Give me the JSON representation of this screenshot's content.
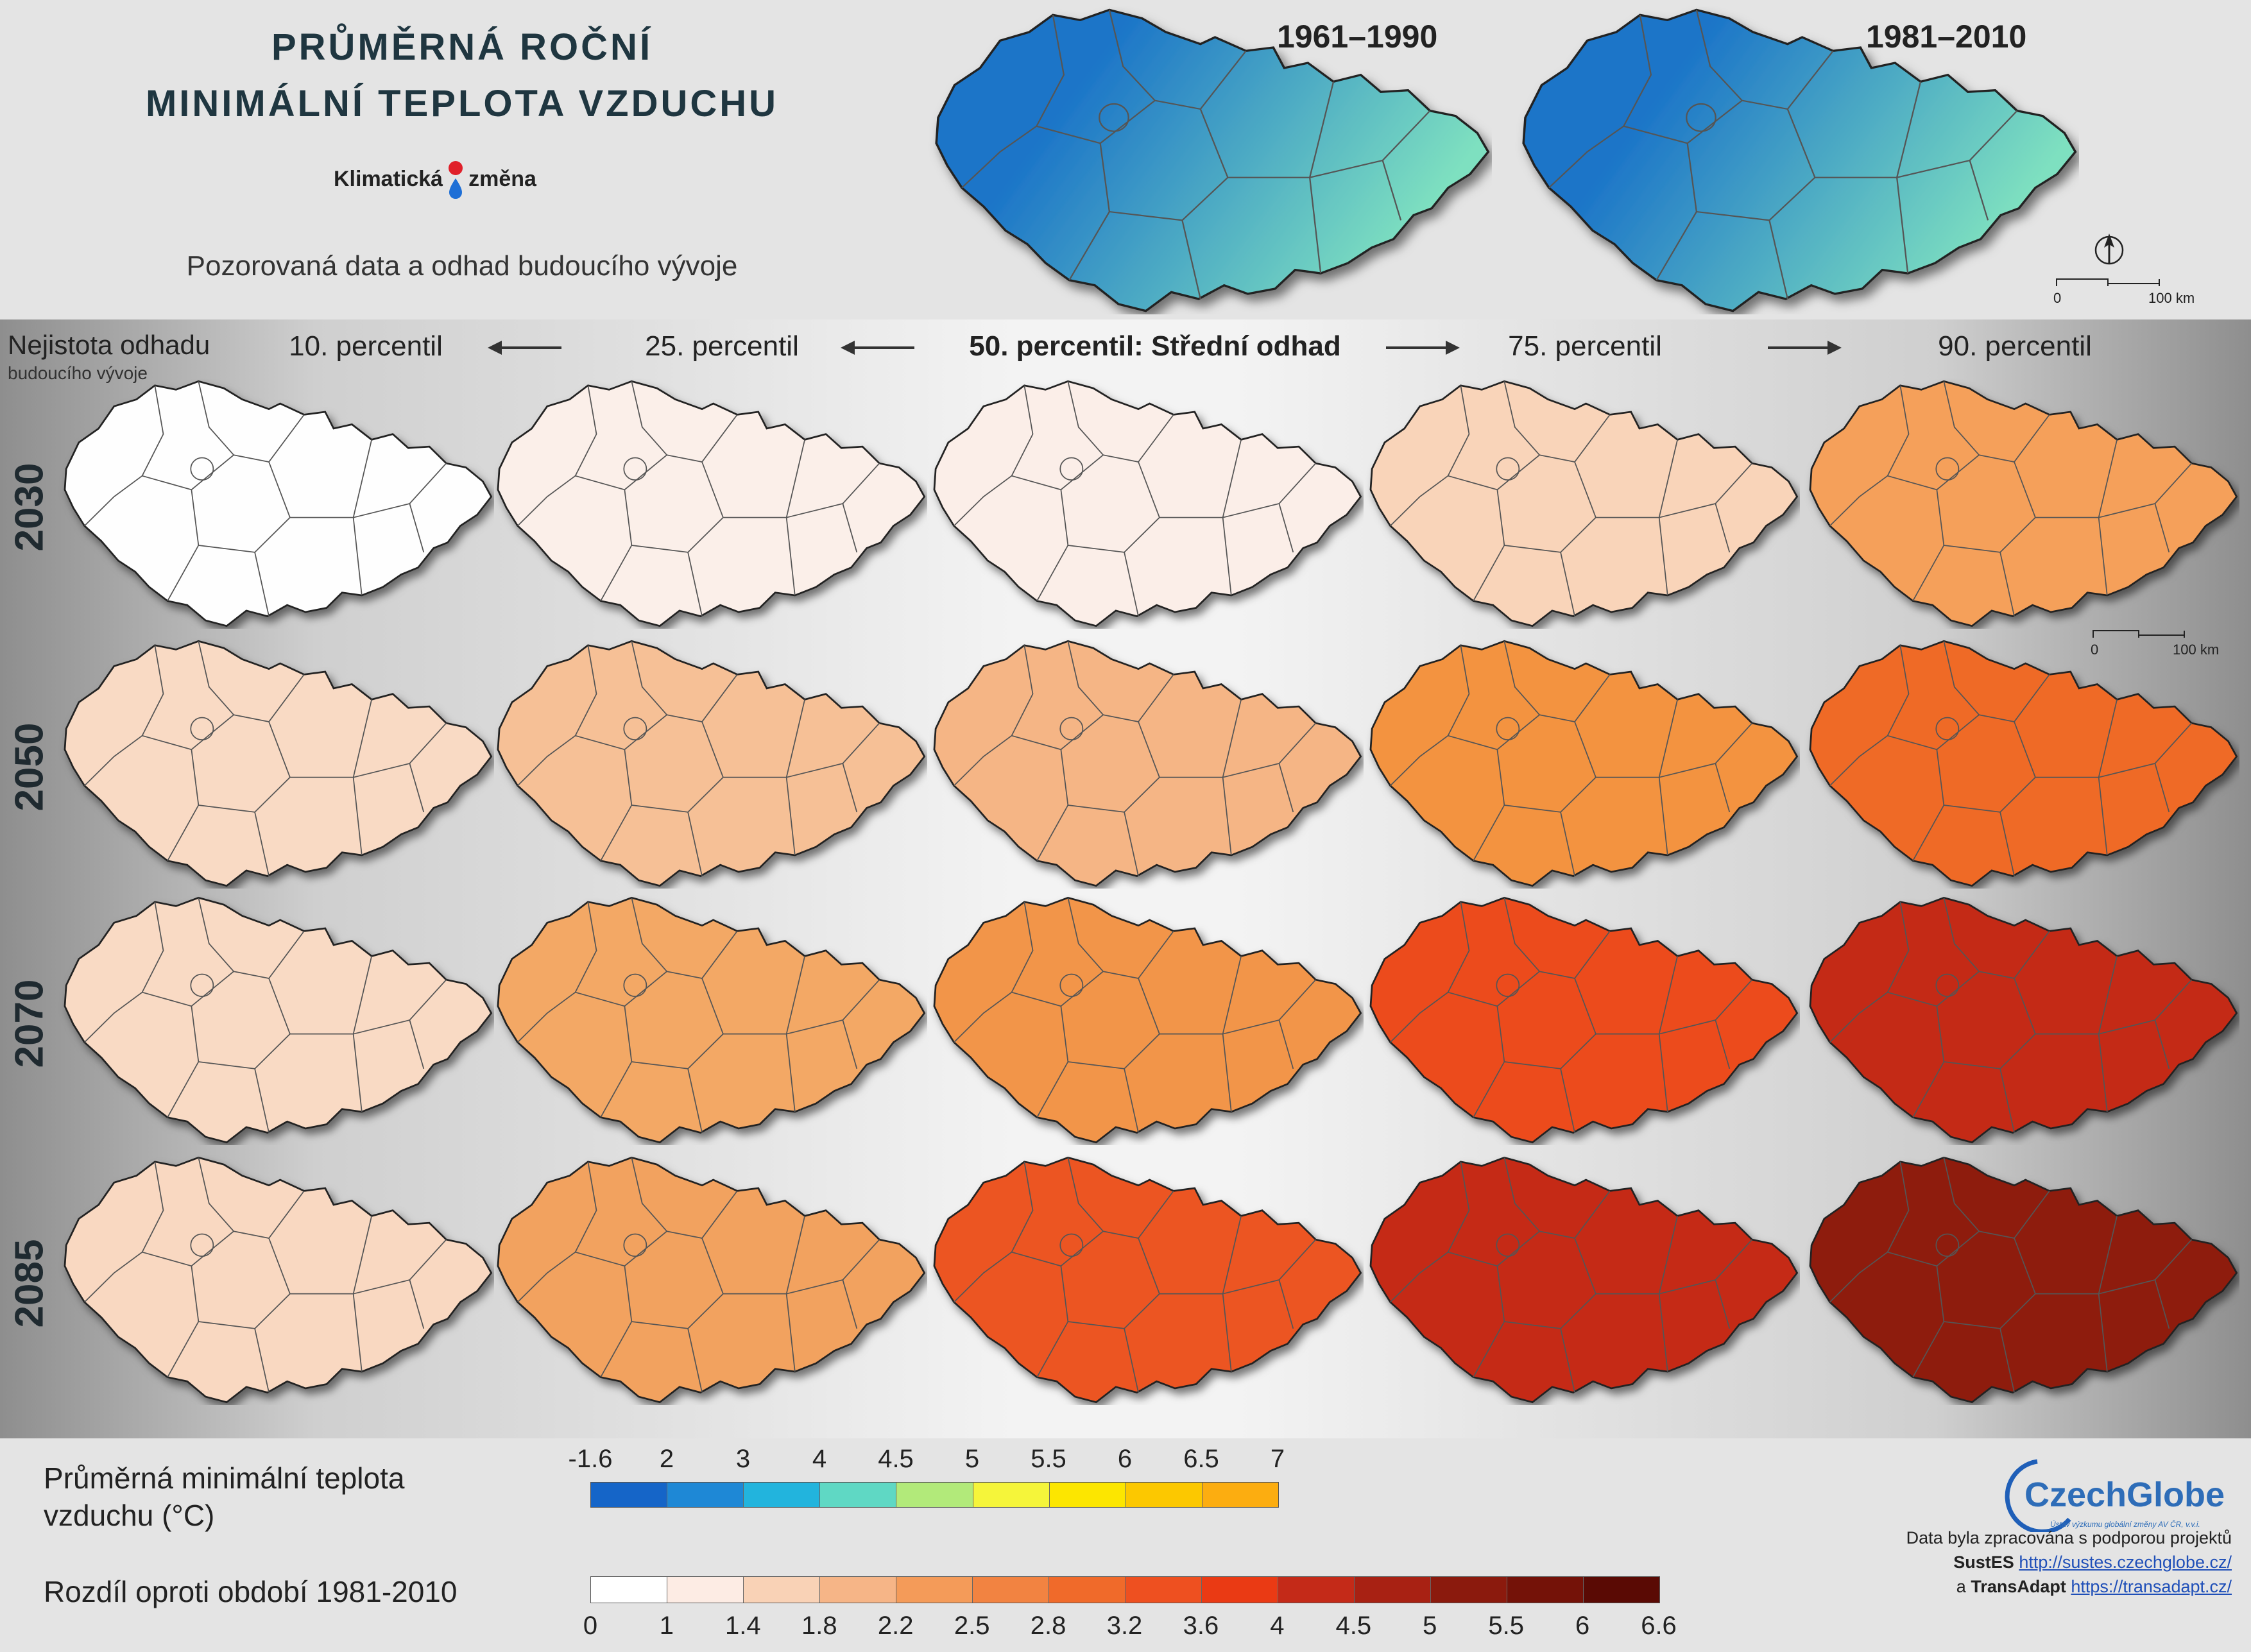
{
  "header": {
    "title_line1": "PRŮMĚRNÁ ROČNÍ",
    "title_line2": "MINIMÁLNÍ TEPLOTA VZDUCHU",
    "brand_left": "Klimatická",
    "brand_right": "změna",
    "subtitle": "Pozorovaná data a odhad budoucího vývoje",
    "period1": "1961–1990",
    "period2": "1981–2010",
    "scale_zero": "0",
    "scale_km": "100 km"
  },
  "uncertainty": {
    "line1": "Nejistota odhadu",
    "line2": "budoucího vývoje"
  },
  "columns": [
    "10. percentil",
    "25. percentil",
    "50. percentil: Střední odhad",
    "75. percentil",
    "90. percentil"
  ],
  "rows": [
    "2030",
    "2050",
    "2070",
    "2085"
  ],
  "observed_colors": [
    "#1b74c8",
    "#7ee0c0"
  ],
  "grid_colors": [
    [
      "#fefefe",
      "#fbefe9",
      "#fbeee8",
      "#f9d4b9",
      "#f5a05a"
    ],
    [
      "#f9dac4",
      "#f6c096",
      "#f5b585",
      "#f3933f",
      "#ef6a28"
    ],
    [
      "#f9dac4",
      "#f3a865",
      "#f2954a",
      "#ec4b1e",
      "#c42a17"
    ],
    [
      "#f9d8c1",
      "#f2a25e",
      "#ec5420",
      "#c52a16",
      "#8e1a0e"
    ]
  ],
  "legend_abs": {
    "label_line1": "Průměrná minimální teplota",
    "label_line2": "vzduchu (°C)",
    "ticks": [
      "-1.6",
      "2",
      "3",
      "4",
      "4.5",
      "5",
      "5.5",
      "6",
      "6.5",
      "7"
    ],
    "colors": [
      "#1565c8",
      "#1e88d6",
      "#22b4dd",
      "#5fd8c4",
      "#b2ea7a",
      "#f5f53a",
      "#fce600",
      "#fcc800",
      "#fcad10"
    ]
  },
  "legend_diff": {
    "label": "Rozdíl oproti období 1981-2010",
    "ticks": [
      "0",
      "1",
      "1.4",
      "1.8",
      "2.2",
      "2.5",
      "2.8",
      "3.2",
      "3.6",
      "4",
      "4.5",
      "5",
      "5.5",
      "6",
      "6.6"
    ],
    "colors": [
      "#ffffff",
      "#fdece4",
      "#f9d2b6",
      "#f6b587",
      "#f49b59",
      "#f28341",
      "#f06a2a",
      "#ee5020",
      "#ea3a14",
      "#c42a18",
      "#a82113",
      "#8b1a0d",
      "#741208",
      "#5a0a04"
    ]
  },
  "credit": {
    "org": "CzechGlobe",
    "org_sub": "Ústav výzkumu globální změny AV ČR, v.v.i.",
    "line1": "Data byla zpracována s podporou projektů",
    "proj1": "SustES",
    "url1": "http://sustes.czechglobe.cz/",
    "and": "a",
    "proj2": "TransAdapt",
    "url2": "https://transadapt.cz/"
  }
}
